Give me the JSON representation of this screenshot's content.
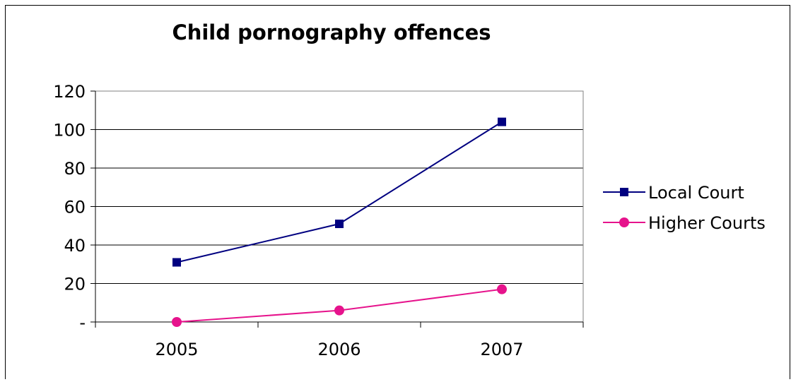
{
  "chart_data": {
    "type": "line",
    "title": "Child pornography offences",
    "xlabel": "",
    "ylabel": "",
    "categories": [
      "2005",
      "2006",
      "2007"
    ],
    "ylim": [
      0,
      120
    ],
    "yticks": [
      0,
      20,
      40,
      60,
      80,
      100,
      120
    ],
    "ytick_labels": [
      "-",
      "20",
      "40",
      "60",
      "80",
      "100",
      "120"
    ],
    "grid": true,
    "legend_position": "right",
    "series": [
      {
        "name": "Local Court",
        "values": [
          31,
          51,
          104
        ],
        "color": "#000080",
        "marker": "square"
      },
      {
        "name": "Higher Courts",
        "values": [
          0,
          6,
          17
        ],
        "color": "#e6138c",
        "marker": "circle"
      }
    ]
  }
}
